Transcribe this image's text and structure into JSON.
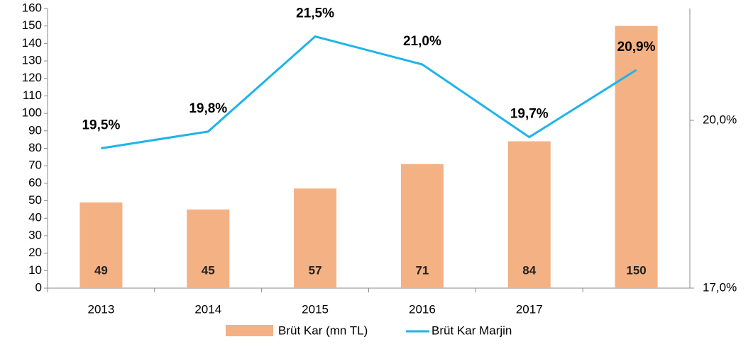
{
  "chart_data": {
    "type": "bar-line",
    "categories": [
      "2013",
      "2014",
      "2015",
      "2016",
      "2017",
      null
    ],
    "series": [
      {
        "name": "Brüt Kar (mn TL)",
        "color": "#f4b183",
        "type": "bar",
        "values": [
          49,
          45,
          57,
          71,
          84,
          150
        ],
        "value_labels": [
          "49",
          "45",
          "57",
          "71",
          "84",
          "150"
        ]
      },
      {
        "name": "Brüt Kar Marjin",
        "color": "#1eb4e8",
        "type": "line",
        "axis": "y2",
        "values": [
          19.5,
          19.8,
          21.5,
          21.0,
          19.7,
          20.9
        ],
        "value_labels": [
          "19,5%",
          "19,8%",
          "21,5%",
          "21,0%",
          "19,7%",
          "20,9%"
        ]
      }
    ],
    "ylim": [
      0,
      160
    ],
    "yticks": [
      0,
      10,
      20,
      30,
      40,
      50,
      60,
      70,
      80,
      90,
      100,
      110,
      120,
      130,
      140,
      150,
      160
    ],
    "y2lim": [
      17,
      22
    ],
    "y2ticks": [
      {
        "value": 17,
        "label": "17,0%"
      },
      {
        "value": 20,
        "label": "20,0%"
      }
    ],
    "legend": "bottom"
  }
}
